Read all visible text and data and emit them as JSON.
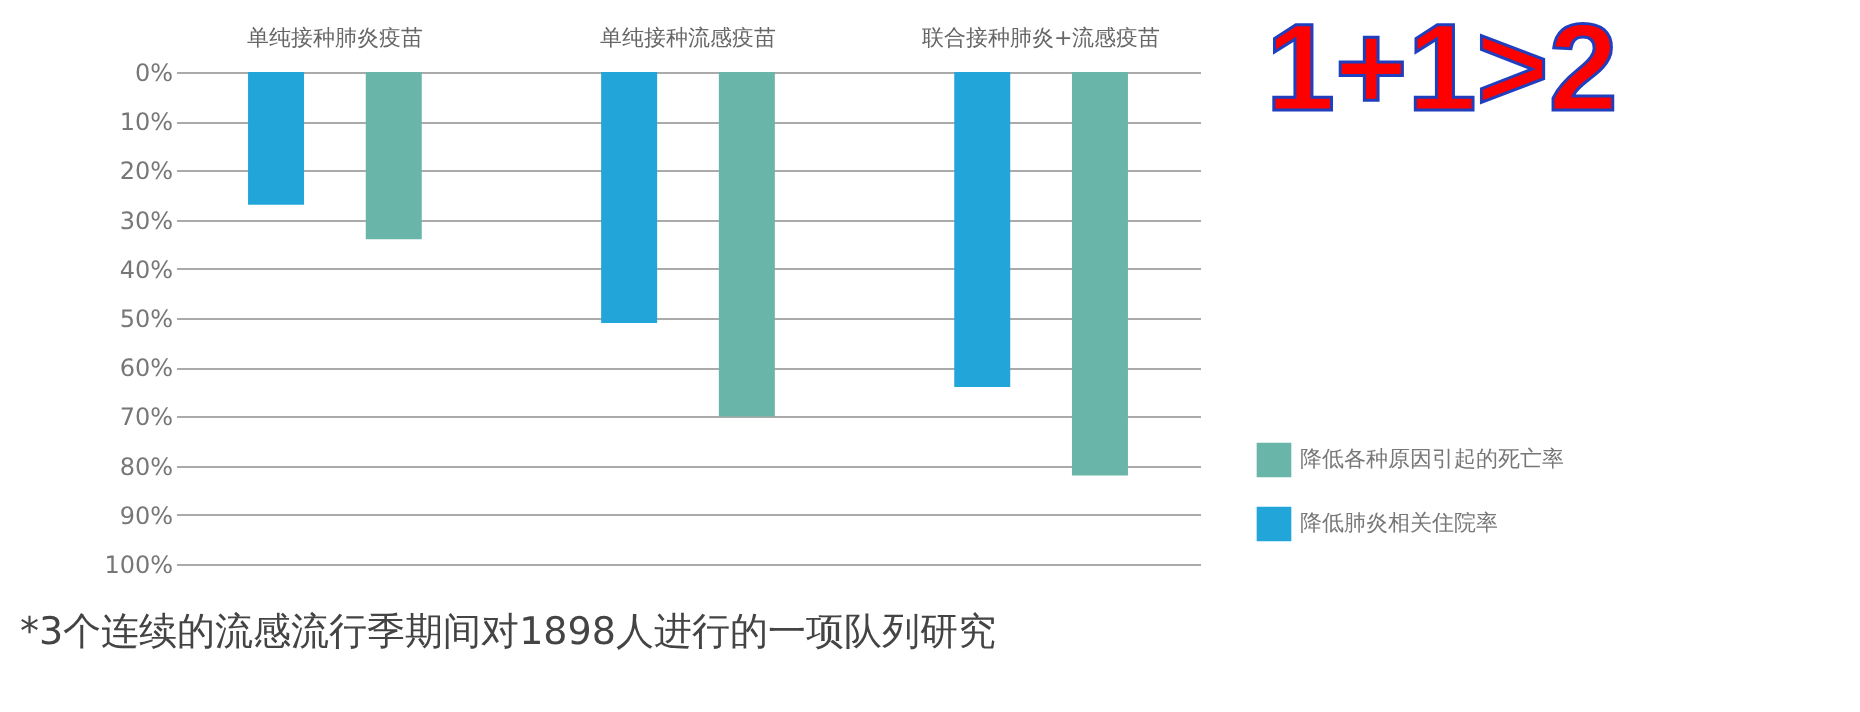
{
  "chart_data": {
    "type": "bar",
    "categories": [
      "单纯接种肺炎疫苗",
      "单纯接种流感疫苗",
      "联合接种肺炎+流感疫苗"
    ],
    "series": [
      {
        "name": "降低肺炎相关住院率",
        "color": "#22a6da",
        "values": [
          27,
          51,
          64
        ]
      },
      {
        "name": "降低各种原因引起的死亡率",
        "color": "#6ab5aa",
        "values": [
          34,
          70,
          82
        ]
      }
    ],
    "ylim": [
      100,
      0
    ],
    "yticks": [
      {
        "value": 0,
        "label": "0%"
      },
      {
        "value": 10,
        "label": "10%"
      },
      {
        "value": 20,
        "label": "20%"
      },
      {
        "value": 30,
        "label": "30%"
      },
      {
        "value": 40,
        "label": "40%"
      },
      {
        "value": 50,
        "label": "50%"
      },
      {
        "value": 60,
        "label": "60%"
      },
      {
        "value": 70,
        "label": "70%"
      },
      {
        "value": 80,
        "label": "80%"
      },
      {
        "value": 90,
        "label": "90%"
      },
      {
        "value": 100,
        "label": "100%"
      }
    ],
    "grid": "y",
    "legend": "bottom right",
    "annotations": [
      "1+1>2",
      "*3个连续的流感流行季期间对1898人进行的一项队列研究"
    ]
  }
}
